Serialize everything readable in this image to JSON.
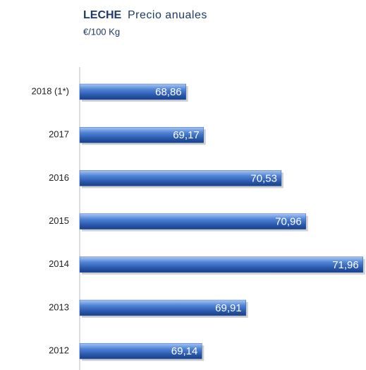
{
  "chart_data": {
    "type": "hbar",
    "title": "LECHE",
    "subtitle": "Precio anuales",
    "unit_label": "€/100 Kg",
    "categories": [
      "2018 (1*)",
      "2017",
      "2016",
      "2015",
      "2014",
      "2013",
      "2012"
    ],
    "values": [
      68.86,
      69.17,
      70.53,
      70.96,
      71.96,
      69.91,
      69.14
    ],
    "value_labels": [
      "68,86",
      "69,17",
      "70,53",
      "70,96",
      "71,96",
      "69,91",
      "69,14"
    ],
    "xlim": [
      67,
      72
    ],
    "color": "#2e62b8"
  }
}
